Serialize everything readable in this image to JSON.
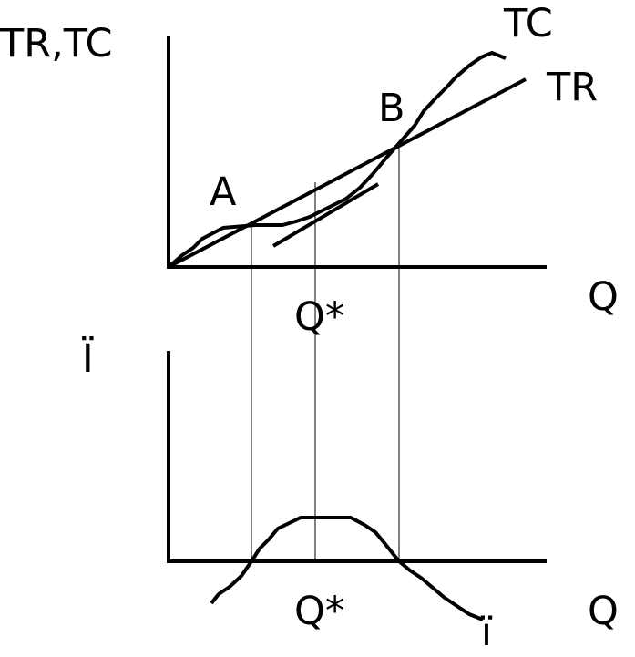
{
  "top_graph": {
    "y_axis_label": "TR,TC",
    "x_axis_label": "Q",
    "curve_labels": {
      "tc": "TC",
      "tr": "TR"
    },
    "points": {
      "a": "A",
      "b": "B"
    },
    "optimum_label": "Q*"
  },
  "bottom_graph": {
    "y_axis_label": "Ï",
    "x_axis_label": "Q",
    "optimum_label": "Q*",
    "curve_label": "ï"
  }
}
